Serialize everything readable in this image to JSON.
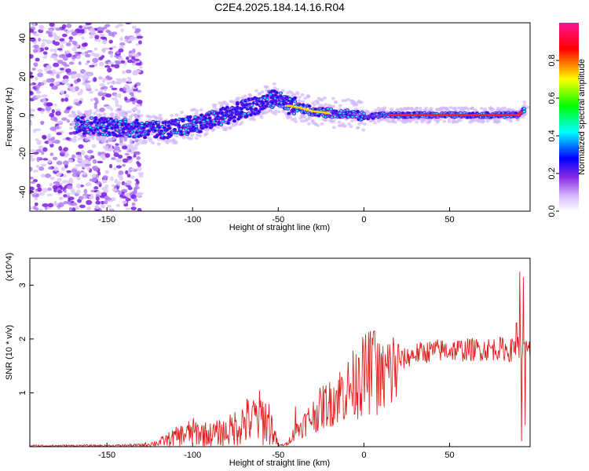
{
  "chart_data": [
    {
      "type": "heatmap",
      "title": "C2E4.2025.184.14.16.R04",
      "xlabel": "Height of straight line (km)",
      "ylabel": "Frequency (Hz)",
      "xlim": [
        -195,
        97
      ],
      "ylim": [
        -50,
        48
      ],
      "xticks": [
        -150,
        -100,
        -50,
        0,
        50
      ],
      "yticks": [
        -40,
        -20,
        0,
        20,
        40
      ],
      "colorbar": {
        "label": "Normalized spectral amplitude",
        "range": [
          0,
          1
        ],
        "ticks": [
          "0.0",
          "0.2",
          "0.4",
          "0.6",
          "0.8"
        ],
        "stops": [
          "#ffffff",
          "#d8b8ff",
          "#8a2be2",
          "#0000ff",
          "#00ffff",
          "#00ff00",
          "#ffff00",
          "#ff0000",
          "#ff1493"
        ]
      },
      "ridge": [
        [
          -165,
          -5
        ],
        [
          -150,
          -6
        ],
        [
          -135,
          -7
        ],
        [
          -120,
          -8
        ],
        [
          -110,
          -7
        ],
        [
          -100,
          -5
        ],
        [
          -90,
          -3
        ],
        [
          -80,
          0
        ],
        [
          -70,
          3
        ],
        [
          -60,
          6
        ],
        [
          -52,
          9
        ],
        [
          -45,
          5
        ],
        [
          -38,
          4
        ],
        [
          -30,
          2
        ],
        [
          -20,
          1
        ],
        [
          -10,
          1
        ],
        [
          0,
          -1
        ],
        [
          10,
          0
        ],
        [
          20,
          0
        ],
        [
          40,
          0
        ],
        [
          60,
          0
        ],
        [
          80,
          0
        ],
        [
          90,
          0
        ],
        [
          94,
          3
        ]
      ]
    },
    {
      "type": "line",
      "xlabel": "Height of straight line (km)",
      "ylabel": "SNR (10 * v/v)",
      "y_multiplier": "(x10^4)",
      "xlim": [
        -195,
        97
      ],
      "ylim": [
        0,
        3.5
      ],
      "xticks": [
        -150,
        -100,
        -50,
        0,
        50
      ],
      "yticks": [
        1,
        2,
        3
      ],
      "color": "#e02020",
      "envelope": [
        [
          -195,
          0.02
        ],
        [
          -150,
          0.02
        ],
        [
          -130,
          0.03
        ],
        [
          -120,
          0.08
        ],
        [
          -110,
          0.2
        ],
        [
          -100,
          0.3
        ],
        [
          -90,
          0.25
        ],
        [
          -80,
          0.3
        ],
        [
          -70,
          0.5
        ],
        [
          -60,
          0.6
        ],
        [
          -55,
          0.5
        ],
        [
          -50,
          0.02
        ],
        [
          -45,
          0.05
        ],
        [
          -40,
          0.3
        ],
        [
          -30,
          0.6
        ],
        [
          -20,
          0.9
        ],
        [
          -10,
          1.1
        ],
        [
          0,
          1.4
        ],
        [
          5,
          1.5
        ],
        [
          10,
          1.3
        ],
        [
          15,
          1.45
        ],
        [
          20,
          1.6
        ],
        [
          30,
          1.75
        ],
        [
          40,
          1.8
        ],
        [
          50,
          1.82
        ],
        [
          60,
          1.82
        ],
        [
          70,
          1.83
        ],
        [
          80,
          1.85
        ],
        [
          85,
          1.8
        ],
        [
          90,
          1.9
        ],
        [
          93,
          1.8
        ],
        [
          97,
          1.8
        ]
      ],
      "spikes": [
        [
          -65,
          0.75
        ],
        [
          -40,
          0.75
        ],
        [
          -20,
          1.2
        ],
        [
          -13,
          1.3
        ],
        [
          -3,
          1.65
        ],
        [
          6,
          2.15
        ],
        [
          14,
          1.9
        ],
        [
          20,
          1.9
        ],
        [
          87,
          1.95
        ],
        [
          89,
          2.3
        ],
        [
          91,
          3.25
        ],
        [
          92,
          0.1
        ],
        [
          93,
          3.15
        ],
        [
          94,
          0.4
        ]
      ]
    }
  ]
}
